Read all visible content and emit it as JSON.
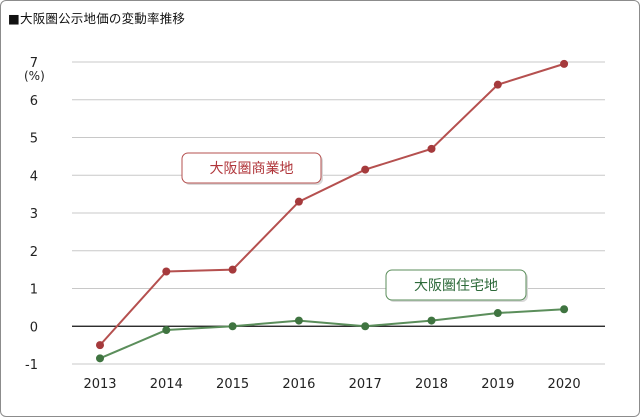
{
  "title": "■大阪圏公示地価の変動率推移",
  "colors": {
    "commercial": "#b5504f",
    "commercial_label": "#b0353a",
    "residential": "#5b8e5b",
    "residential_label": "#2d6a3a",
    "grid": "#c8c8c8",
    "zero_line": "#111111"
  },
  "chart_data": {
    "type": "line",
    "title": "■大阪圏公示地価の変動率推移",
    "x": [
      "2013",
      "2014",
      "2015",
      "2016",
      "2017",
      "2018",
      "2019",
      "2020"
    ],
    "y_unit": "(%)",
    "ylim": [
      -1,
      7
    ],
    "yticks": [
      7,
      6,
      5,
      4,
      3,
      2,
      1,
      0,
      -1
    ],
    "grid": true,
    "series": [
      {
        "name": "大阪圏商業地",
        "color": "#b5504f",
        "values": [
          -0.5,
          1.45,
          1.5,
          3.3,
          4.15,
          4.7,
          6.4,
          6.95
        ]
      },
      {
        "name": "大阪圏住宅地",
        "color": "#5b8e5b",
        "values": [
          -0.85,
          -0.1,
          0.0,
          0.15,
          0.0,
          0.15,
          0.35,
          0.45
        ]
      }
    ]
  }
}
